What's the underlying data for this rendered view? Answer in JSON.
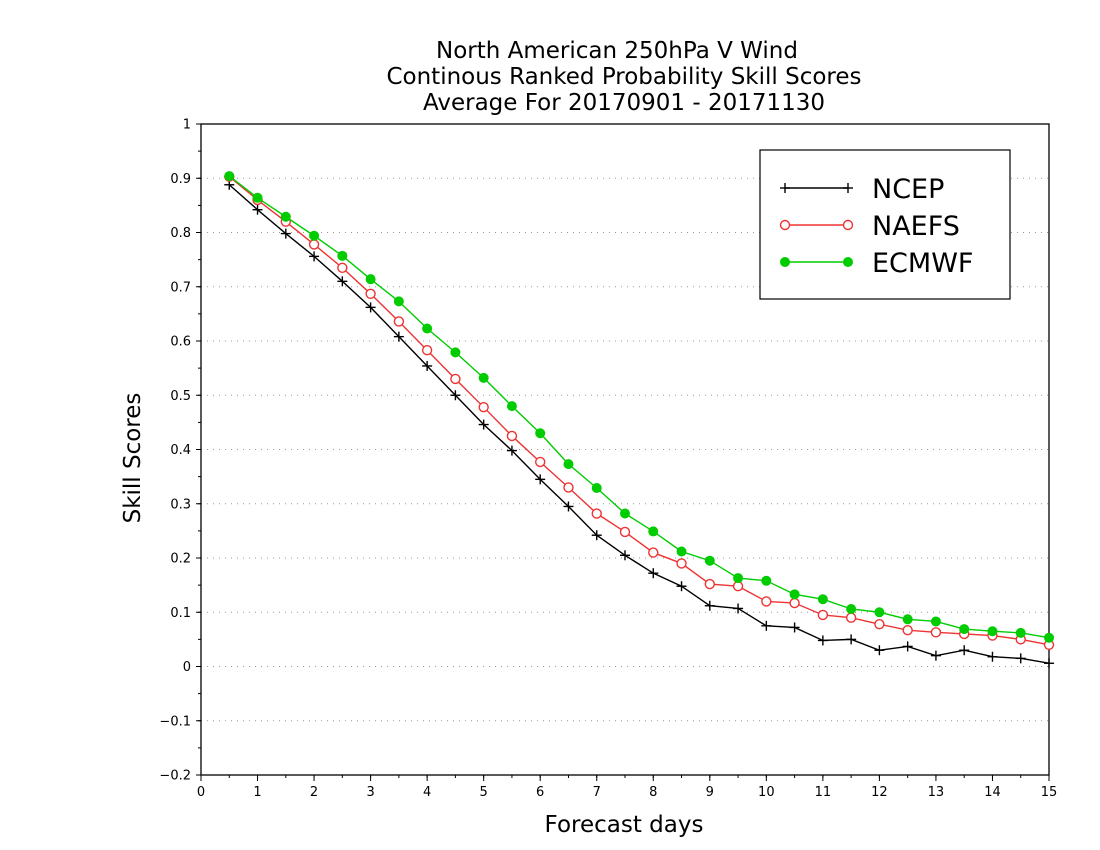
{
  "chart_data": {
    "type": "line",
    "title_lines": [
      "North American 250hPa V Wind",
      "Continous Ranked Probability Skill Scores",
      "Average For 20170901 - 20171130"
    ],
    "xlabel": "Forecast days",
    "ylabel": "Skill Scores",
    "xlim": [
      0,
      15
    ],
    "ylim": [
      -0.2,
      1
    ],
    "x_ticks": [
      "0",
      "1",
      "2",
      "3",
      "4",
      "5",
      "6",
      "7",
      "8",
      "9",
      "10",
      "11",
      "12",
      "13",
      "14",
      "15"
    ],
    "y_ticks": [
      "1",
      "0.9",
      "0.8",
      "0.7",
      "0.6",
      "0.5",
      "0.4",
      "0.3",
      "0.2",
      "0.1",
      "0",
      "-0.1",
      "-0.2"
    ],
    "grid": "horizontal dotted",
    "legend_position": "top-right",
    "x": [
      0.5,
      1,
      1.5,
      2,
      2.5,
      3,
      3.5,
      4,
      4.5,
      5,
      5.5,
      6,
      6.5,
      7,
      7.5,
      8,
      8.5,
      9,
      9.5,
      10,
      10.5,
      11,
      11.5,
      12,
      12.5,
      13,
      13.5,
      14,
      14.5,
      15
    ],
    "series": [
      {
        "name": "NCEP",
        "color": "#000000",
        "marker": "plus",
        "values": [
          0.888,
          0.842,
          0.798,
          0.756,
          0.71,
          0.662,
          0.608,
          0.554,
          0.5,
          0.446,
          0.398,
          0.345,
          0.295,
          0.242,
          0.205,
          0.172,
          0.148,
          0.112,
          0.107,
          0.075,
          0.072,
          0.048,
          0.05,
          0.03,
          0.037,
          0.02,
          0.03,
          0.018,
          0.015,
          0.006
        ]
      },
      {
        "name": "NAEFS",
        "color": "#ee3333",
        "marker": "open-circle",
        "values": [
          0.903,
          0.86,
          0.82,
          0.778,
          0.735,
          0.687,
          0.636,
          0.583,
          0.53,
          0.478,
          0.425,
          0.377,
          0.33,
          0.282,
          0.248,
          0.21,
          0.19,
          0.152,
          0.148,
          0.12,
          0.117,
          0.095,
          0.09,
          0.078,
          0.067,
          0.063,
          0.06,
          0.057,
          0.05,
          0.04
        ]
      },
      {
        "name": "ECMWF",
        "color": "#00cc00",
        "marker": "filled-circle",
        "values": [
          0.904,
          0.864,
          0.829,
          0.794,
          0.757,
          0.714,
          0.673,
          0.623,
          0.579,
          0.532,
          0.48,
          0.43,
          0.373,
          0.329,
          0.282,
          0.249,
          0.212,
          0.195,
          0.163,
          0.158,
          0.133,
          0.124,
          0.106,
          0.1,
          0.087,
          0.083,
          0.069,
          0.065,
          0.062,
          0.053
        ]
      }
    ]
  }
}
